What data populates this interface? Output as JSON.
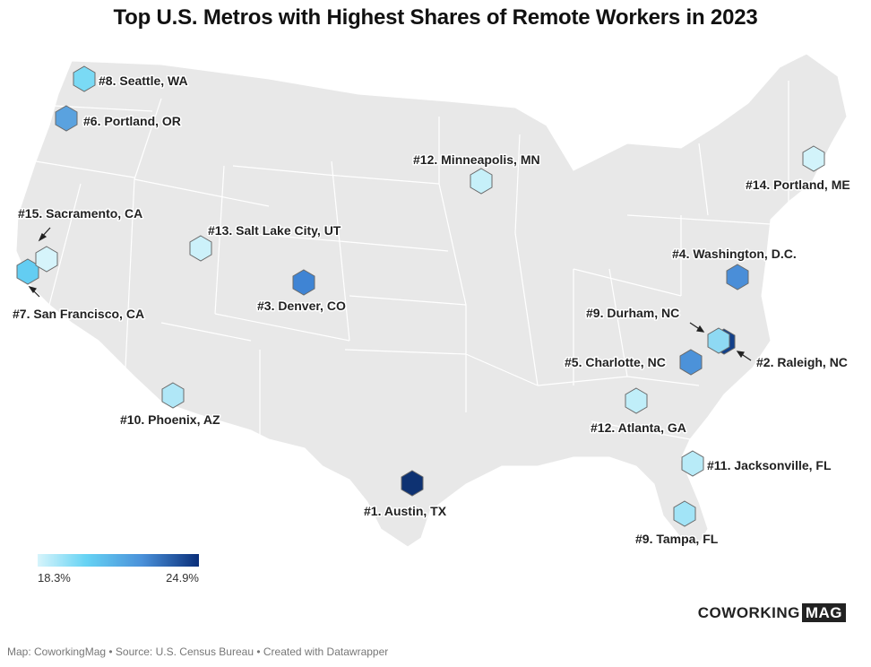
{
  "title": "Top U.S. Metros with Highest Shares of Remote Workers in 2023",
  "legend": {
    "min": "18.3%",
    "max": "24.9%"
  },
  "logo": {
    "part1": "COWORKING",
    "part2": "MAG"
  },
  "footer": "Map: CoworkingMag • Source: U.S. Census Bureau • Created with Datawrapper",
  "colors": {
    "land": "#e8e8e8",
    "border": "#ffffff",
    "light": "#d6f4fb",
    "mid": "#4a90d9",
    "dark": "#0a2f7a"
  },
  "metros": [
    {
      "label": "#1. Austin, TX"
    },
    {
      "label": "#2. Raleigh, NC"
    },
    {
      "label": "#3. Denver, CO"
    },
    {
      "label": "#4. Washington, D.C."
    },
    {
      "label": "#5. Charlotte, NC"
    },
    {
      "label": "#6. Portland, OR"
    },
    {
      "label": "#7. San Francisco, CA"
    },
    {
      "label": "#8. Seattle, WA"
    },
    {
      "label": "#9. Durham, NC"
    },
    {
      "label": "#9. Tampa, FL"
    },
    {
      "label": "#10. Phoenix, AZ"
    },
    {
      "label": "#11. Jacksonville, FL"
    },
    {
      "label": "#12. Atlanta, GA"
    },
    {
      "label": "#12. Minneapolis, MN"
    },
    {
      "label": "#13. Salt Lake City, UT"
    },
    {
      "label": "#14. Portland, ME"
    },
    {
      "label": "#15. Sacramento, CA"
    }
  ]
}
